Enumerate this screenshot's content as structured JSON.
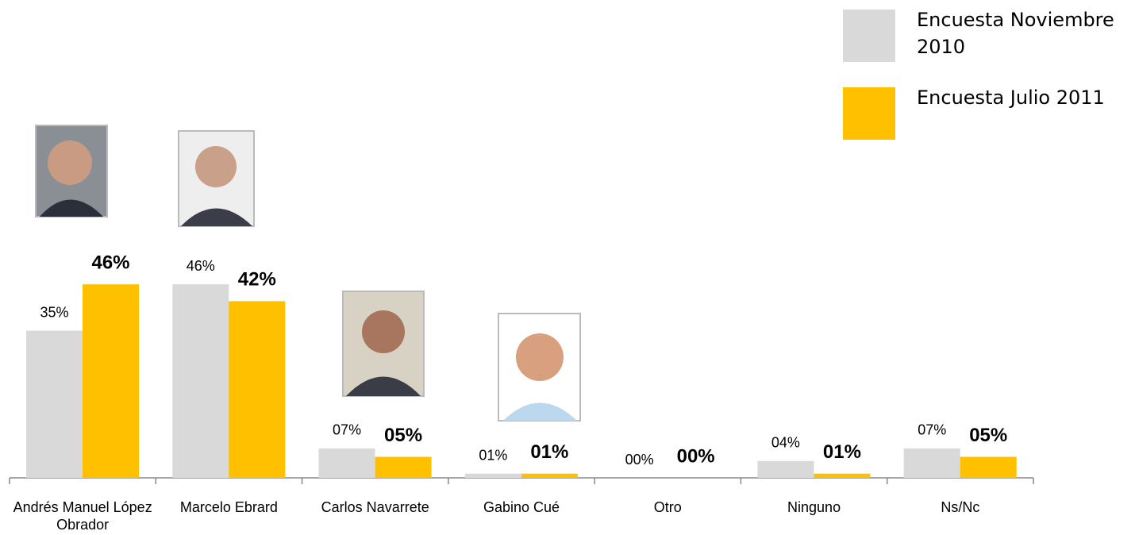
{
  "chart_data": {
    "type": "bar",
    "categories": [
      "Andrés Manuel López Obrador",
      "Marcelo Ebrard",
      "Carlos Navarrete",
      "Gabino Cué",
      "Otro",
      "Ninguno",
      "Ns/Nc"
    ],
    "series": [
      {
        "name": "Encuesta Noviembre 2010",
        "color": "#d9d9d9",
        "values": [
          35,
          46,
          7,
          1,
          0,
          4,
          7
        ],
        "value_labels": [
          "35%",
          "46%",
          "07%",
          "01%",
          "00%",
          "04%",
          "07%"
        ]
      },
      {
        "name": "Encuesta Julio 2011",
        "color": "#ffc000",
        "values": [
          46,
          42,
          5,
          1,
          0,
          1,
          5
        ],
        "value_labels": [
          "46%",
          "42%",
          "05%",
          "01%",
          "00%",
          "01%",
          "05%"
        ]
      }
    ]
  }
}
